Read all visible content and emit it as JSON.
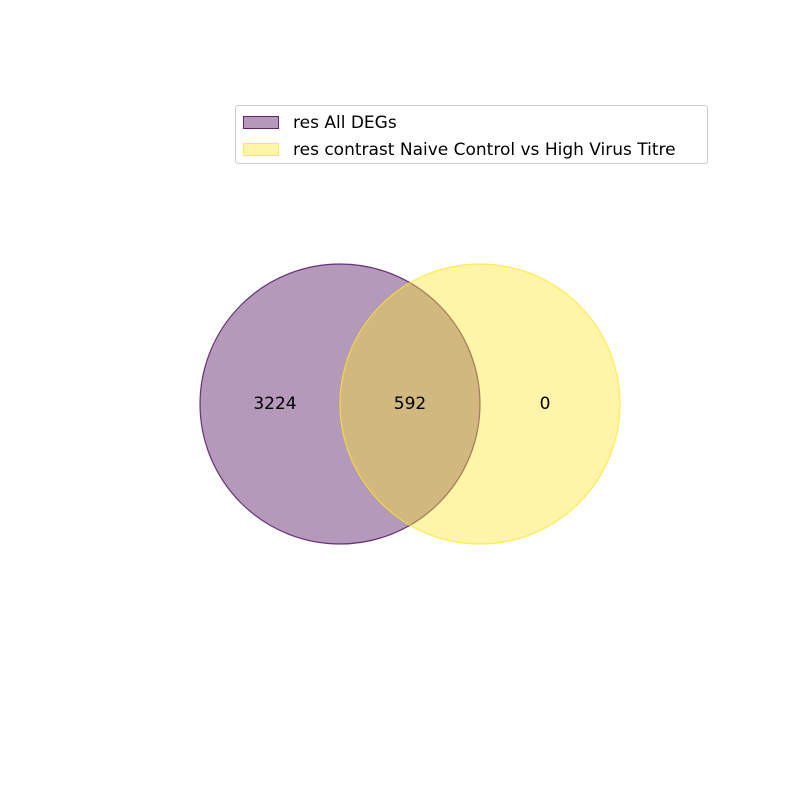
{
  "chart_data": {
    "type": "venn",
    "sets": [
      {
        "name": "res All DEGs",
        "color": "#440154",
        "fill_alpha": 0.4
      },
      {
        "name": "res contrast Naive Control vs High Virus Titre",
        "color": "#fde725",
        "fill_alpha": 0.4
      }
    ],
    "regions": {
      "only_set_1": "3224",
      "intersection": "592",
      "only_set_2": "0"
    }
  },
  "legend": {
    "items": [
      {
        "label": "res All DEGs"
      },
      {
        "label": "res contrast Naive Control vs High Virus Titre"
      }
    ]
  }
}
